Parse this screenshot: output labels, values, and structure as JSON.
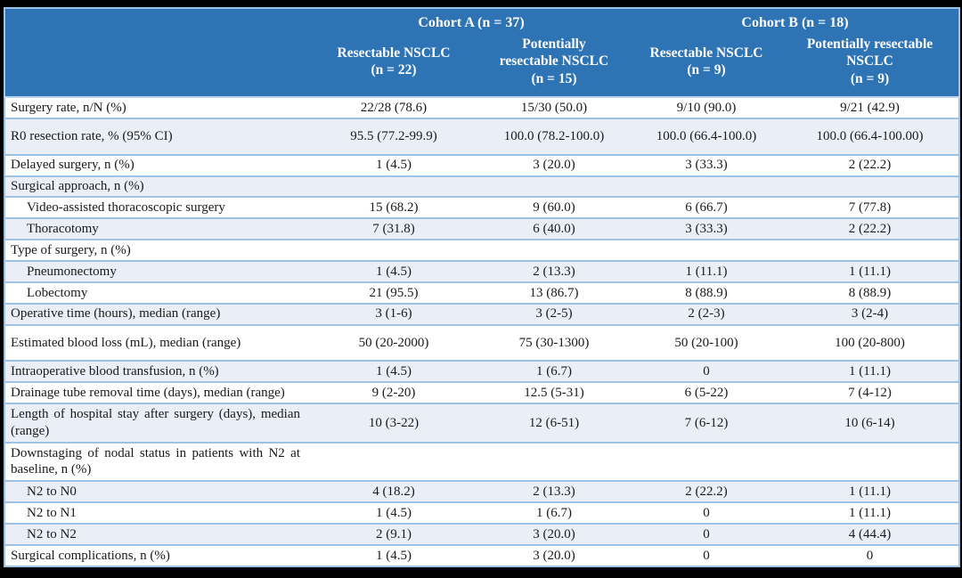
{
  "colors": {
    "frame": "#000000",
    "header_bg": "#2E74B5",
    "header_text": "#FFFFFF",
    "band": "#EAEFF7",
    "grid": "#9CC2E5"
  },
  "table": {
    "cohorts": [
      {
        "label": "Cohort A (n = 37)"
      },
      {
        "label": "Cohort B (n = 18)"
      }
    ],
    "subheaders": [
      {
        "label": "Resectable NSCLC",
        "n": "(n = 22)"
      },
      {
        "label": "Potentially resectable NSCLC",
        "n": "(n = 15)"
      },
      {
        "label": "Resectable NSCLC",
        "n": "(n = 9)"
      },
      {
        "label": "Potentially resectable NSCLC",
        "n": "(n = 9)"
      }
    ],
    "rows": [
      {
        "label": "Surgery rate, n/N (%)",
        "indent": false,
        "tall": false,
        "values": [
          "22/28 (78.6)",
          "15/30 (50.0)",
          "9/10 (90.0)",
          "9/21 (42.9)"
        ]
      },
      {
        "label": "R0 resection rate, % (95% CI)",
        "indent": false,
        "tall": true,
        "values": [
          "95.5 (77.2-99.9)",
          "100.0 (78.2-100.0)",
          "100.0 (66.4-100.0)",
          "100.0 (66.4-100.00)"
        ]
      },
      {
        "label": "Delayed surgery, n (%)",
        "indent": false,
        "tall": false,
        "values": [
          "1 (4.5)",
          "3 (20.0)",
          "3 (33.3)",
          "2 (22.2)"
        ]
      },
      {
        "label": "Surgical approach, n (%)",
        "indent": false,
        "tall": false,
        "values": [
          "",
          "",
          "",
          ""
        ]
      },
      {
        "label": "Video-assisted thoracoscopic surgery",
        "indent": true,
        "tall": false,
        "values": [
          "15 (68.2)",
          "9 (60.0)",
          "6 (66.7)",
          "7 (77.8)"
        ]
      },
      {
        "label": "Thoracotomy",
        "indent": true,
        "tall": false,
        "values": [
          "7 (31.8)",
          "6 (40.0)",
          "3 (33.3)",
          "2 (22.2)"
        ]
      },
      {
        "label": "Type of surgery, n (%)",
        "indent": false,
        "tall": false,
        "values": [
          "",
          "",
          "",
          ""
        ]
      },
      {
        "label": "Pneumonectomy",
        "indent": true,
        "tall": false,
        "values": [
          "1 (4.5)",
          "2 (13.3)",
          "1 (11.1)",
          "1 (11.1)"
        ]
      },
      {
        "label": "Lobectomy",
        "indent": true,
        "tall": false,
        "values": [
          "21 (95.5)",
          "13 (86.7)",
          "8 (88.9)",
          "8 (88.9)"
        ]
      },
      {
        "label": "Operative time (hours), median (range)",
        "indent": false,
        "tall": false,
        "values": [
          "3 (1-6)",
          "3 (2-5)",
          "2 (2-3)",
          "3 (2-4)"
        ]
      },
      {
        "label": "Estimated blood loss (mL), median (range)",
        "indent": false,
        "tall": true,
        "values": [
          "50 (20-2000)",
          "75 (30-1300)",
          "50 (20-100)",
          "100 (20-800)"
        ]
      },
      {
        "label": "Intraoperative blood transfusion, n (%)",
        "indent": false,
        "tall": false,
        "values": [
          "1 (4.5)",
          "1 (6.7)",
          "0",
          "1 (11.1)"
        ]
      },
      {
        "label": "Drainage tube removal time (days), median (range)",
        "indent": false,
        "tall": false,
        "values": [
          "9 (2-20)",
          "12.5 (5-31)",
          "6 (5-22)",
          "7 (4-12)"
        ]
      },
      {
        "label": "Length of hospital stay after surgery (days), median (range)",
        "indent": false,
        "tall": false,
        "values": [
          "10 (3-22)",
          "12 (6-51)",
          "7 (6-12)",
          "10 (6-14)"
        ]
      },
      {
        "label": "Downstaging of nodal status in patients with N2 at baseline, n (%)",
        "indent": false,
        "tall": false,
        "values": [
          "",
          "",
          "",
          ""
        ]
      },
      {
        "label": "N2 to N0",
        "indent": true,
        "tall": false,
        "values": [
          "4 (18.2)",
          "2 (13.3)",
          "2 (22.2)",
          "1 (11.1)"
        ]
      },
      {
        "label": "N2 to N1",
        "indent": true,
        "tall": false,
        "values": [
          "1 (4.5)",
          "1 (6.7)",
          "0",
          "1 (11.1)"
        ]
      },
      {
        "label": "N2 to N2",
        "indent": true,
        "tall": false,
        "values": [
          "2 (9.1)",
          "3 (20.0)",
          "0",
          "4 (44.4)"
        ]
      },
      {
        "label": "Surgical complications, n (%)",
        "indent": false,
        "tall": false,
        "values": [
          "1 (4.5)",
          "3 (20.0)",
          "0",
          "0"
        ]
      }
    ]
  }
}
